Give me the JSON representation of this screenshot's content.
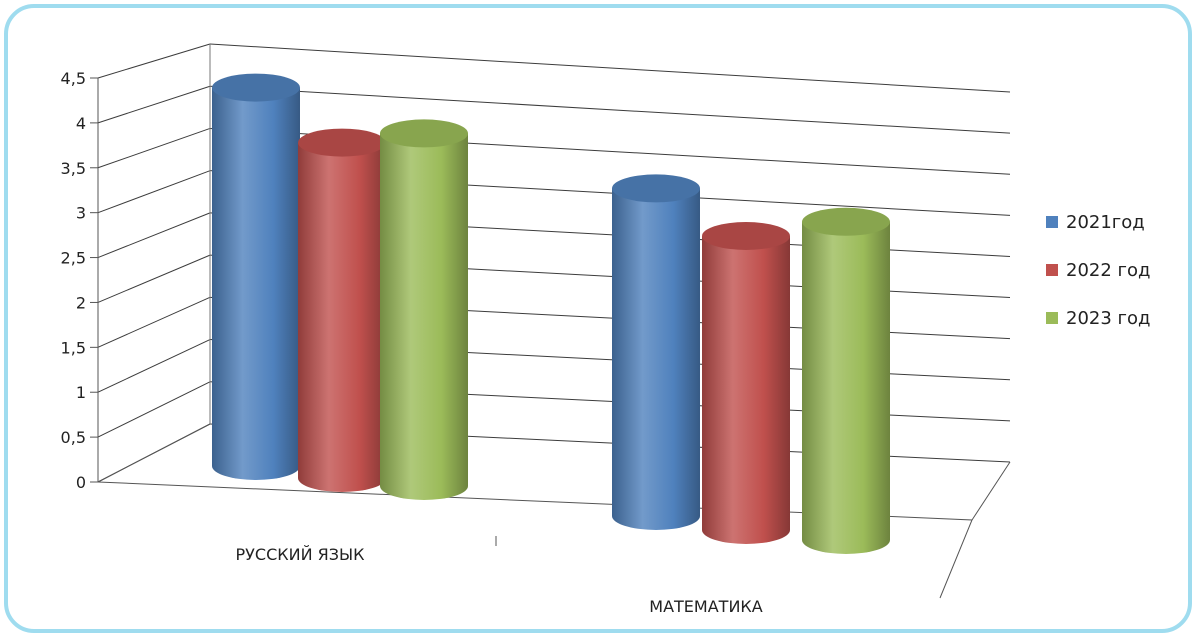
{
  "chart_data": {
    "type": "bar",
    "categories": [
      "РУССКИЙ ЯЗЫК",
      "МАТЕМАТИКА"
    ],
    "series": [
      {
        "name": "2021год",
        "values": [
          4.3,
          3.9
        ],
        "color": "#4f81bd"
      },
      {
        "name": "2022 год",
        "values": [
          3.9,
          3.5
        ],
        "color": "#c0504d"
      },
      {
        "name": "2023 год",
        "values": [
          4.1,
          3.7
        ],
        "color": "#9bbb59"
      }
    ],
    "ylim": [
      0,
      4.5
    ],
    "yticks": [
      "0",
      "0,5",
      "1",
      "1,5",
      "2",
      "2,5",
      "3",
      "3,5",
      "4",
      "4,5"
    ],
    "title": "",
    "xlabel": "",
    "ylabel": "",
    "grid": true,
    "legend_position": "right",
    "style": "3d-cylinder"
  }
}
